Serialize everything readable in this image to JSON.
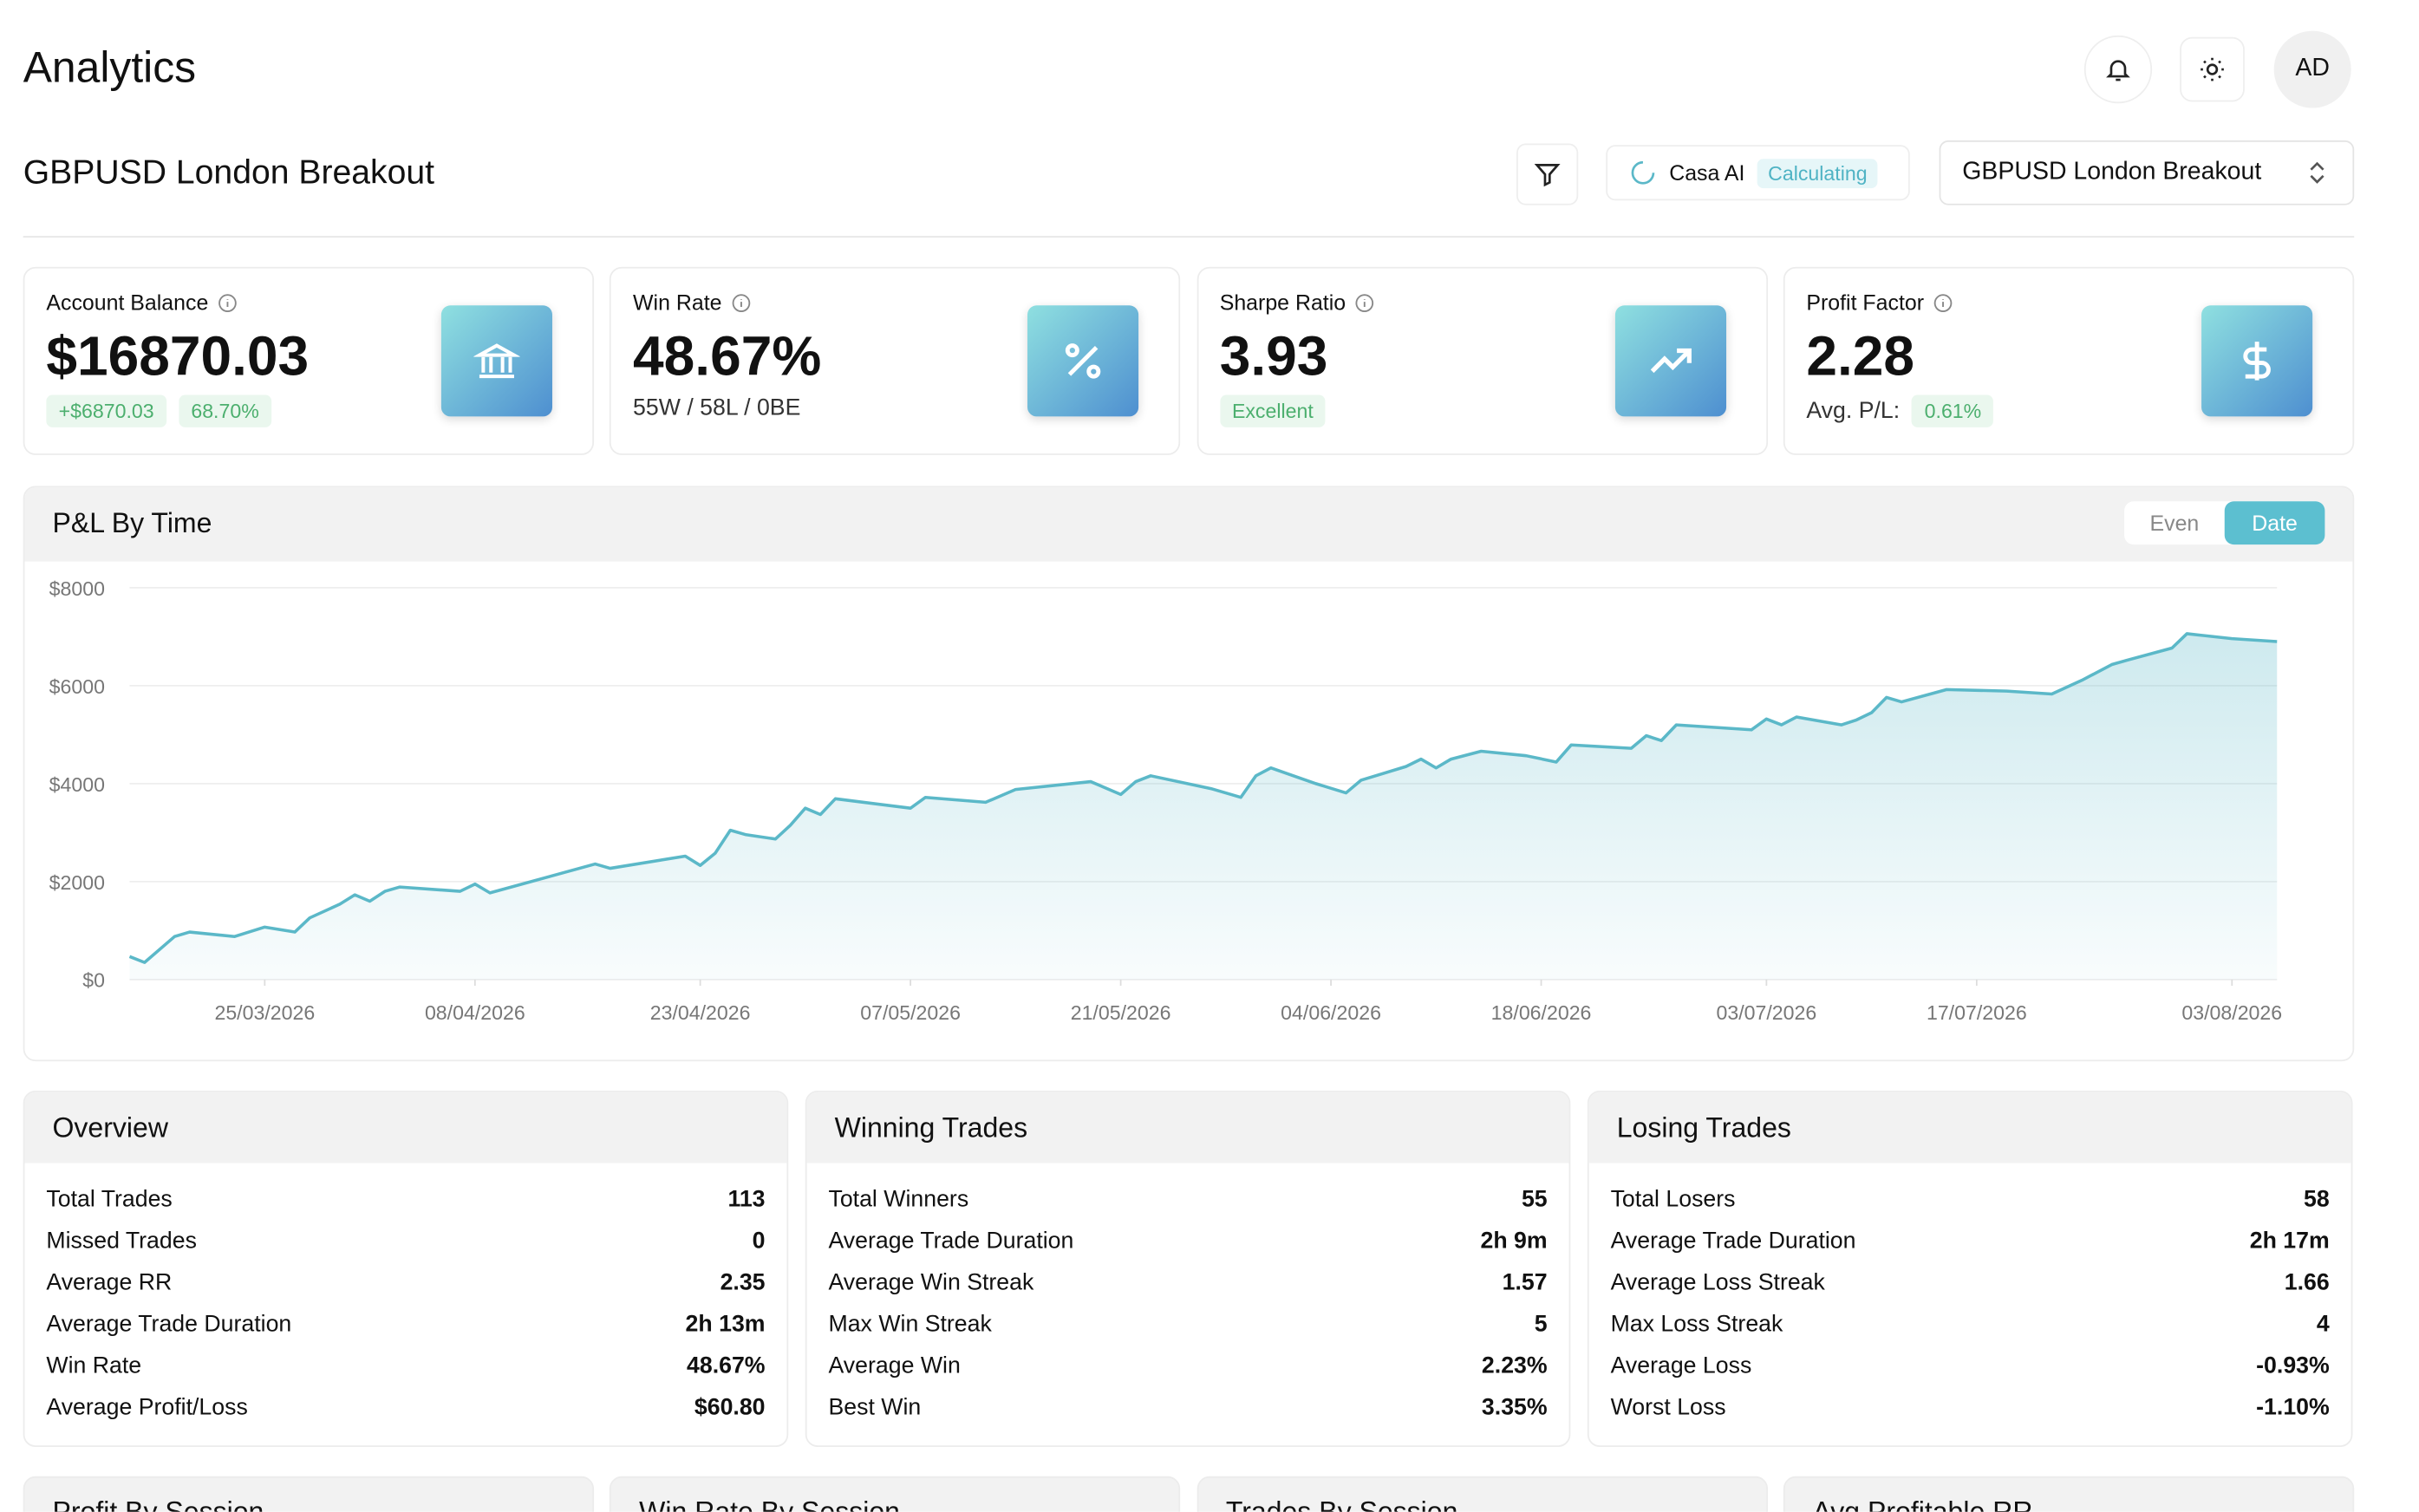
{
  "header": {
    "title": "Analytics",
    "avatar": "AD"
  },
  "strategy": {
    "title": "GBPUSD London Breakout",
    "ai_label": "Casa AI",
    "ai_status": "Calculating",
    "selector": "GBPUSD London Breakout"
  },
  "cards": [
    {
      "label": "Account Balance",
      "value": "$16870.03",
      "badges": [
        "+$6870.03",
        "68.70%"
      ]
    },
    {
      "label": "Win Rate",
      "value": "48.67%",
      "sub": "55W / 58L / 0BE"
    },
    {
      "label": "Sharpe Ratio",
      "value": "3.93",
      "badges": [
        "Excellent"
      ]
    },
    {
      "label": "Profit Factor",
      "value": "2.28",
      "sub": "Avg. P/L:",
      "badges": [
        "0.61%"
      ]
    }
  ],
  "chart_data": {
    "type": "line",
    "title": "P&L By Time",
    "toggle": [
      "Even",
      "Date"
    ],
    "color": "#5bb8c8",
    "x": [
      "16/03/2026",
      "17/03/2026",
      "19/03/2026",
      "20/03/2026",
      "23/03/2026",
      "25/03/2026",
      "27/03/2026",
      "28/03/2026",
      "30/03/2026",
      "31/03/2026",
      "01/04/2026",
      "02/04/2026",
      "03/04/2026",
      "07/04/2026",
      "08/04/2026",
      "09/04/2026",
      "16/04/2026",
      "17/04/2026",
      "22/04/2026",
      "23/04/2026",
      "24/04/2026",
      "25/04/2026",
      "26/04/2026",
      "28/04/2026",
      "29/04/2026",
      "30/04/2026",
      "01/05/2026",
      "02/05/2026",
      "07/05/2026",
      "08/05/2026",
      "12/05/2026",
      "14/05/2026",
      "19/05/2026",
      "21/05/2026",
      "22/05/2026",
      "23/05/2026",
      "27/05/2026",
      "29/05/2026",
      "30/05/2026",
      "31/05/2026",
      "03/06/2026",
      "05/06/2026",
      "06/06/2026",
      "09/06/2026",
      "10/06/2026",
      "11/06/2026",
      "12/06/2026",
      "14/06/2026",
      "17/06/2026",
      "19/06/2026",
      "20/06/2026",
      "24/06/2026",
      "25/06/2026",
      "26/06/2026",
      "27/06/2026",
      "02/07/2026",
      "03/07/2026",
      "04/07/2026",
      "05/07/2026",
      "08/07/2026",
      "09/07/2026",
      "10/07/2026",
      "11/07/2026",
      "12/07/2026",
      "15/07/2026",
      "19/07/2026",
      "22/07/2026",
      "24/07/2026",
      "26/07/2026",
      "27/07/2026",
      "30/07/2026",
      "31/07/2026",
      "03/08/2026",
      "06/08/2026"
    ],
    "values": [
      470,
      350,
      880,
      970,
      880,
      1070,
      970,
      1260,
      1540,
      1730,
      1600,
      1800,
      1890,
      1800,
      1950,
      1770,
      2360,
      2270,
      2520,
      2330,
      2580,
      3050,
      2960,
      2870,
      3150,
      3500,
      3370,
      3690,
      3500,
      3720,
      3620,
      3880,
      4040,
      3780,
      4040,
      4160,
      3900,
      3720,
      4160,
      4320,
      4000,
      3810,
      4070,
      4350,
      4500,
      4320,
      4500,
      4660,
      4570,
      4440,
      4790,
      4720,
      4980,
      4880,
      5200,
      5100,
      5320,
      5200,
      5360,
      5200,
      5300,
      5450,
      5760,
      5670,
      5920,
      5890,
      5830,
      6110,
      6430,
      6520,
      6770,
      7060,
      6960,
      6900
    ],
    "xlim": [
      "16/03/2026",
      "06/08/2026"
    ],
    "xticks": [
      "25/03/2026",
      "08/04/2026",
      "23/04/2026",
      "07/05/2026",
      "21/05/2026",
      "04/06/2026",
      "18/06/2026",
      "03/07/2026",
      "17/07/2026",
      "03/08/2026"
    ],
    "ylim": [
      0,
      8000
    ],
    "yticks": [
      {
        "value": 0,
        "label": "$0"
      },
      {
        "value": 2000,
        "label": "$2000"
      },
      {
        "value": 4000,
        "label": "$4000"
      },
      {
        "value": 6000,
        "label": "$6000"
      },
      {
        "value": 8000,
        "label": "$8000"
      }
    ],
    "grid": true
  },
  "stats": [
    {
      "title": "Overview",
      "rows": [
        [
          "Total Trades",
          "113"
        ],
        [
          "Missed Trades",
          "0"
        ],
        [
          "Average RR",
          "2.35"
        ],
        [
          "Average Trade Duration",
          "2h 13m"
        ],
        [
          "Win Rate",
          "48.67%"
        ],
        [
          "Average Profit/Loss",
          "$60.80"
        ]
      ]
    },
    {
      "title": "Winning Trades",
      "rows": [
        [
          "Total Winners",
          "55"
        ],
        [
          "Average Trade Duration",
          "2h 9m"
        ],
        [
          "Average Win Streak",
          "1.57"
        ],
        [
          "Max Win Streak",
          "5"
        ],
        [
          "Average Win",
          "2.23%"
        ],
        [
          "Best Win",
          "3.35%"
        ]
      ]
    },
    {
      "title": "Losing Trades",
      "rows": [
        [
          "Total Losers",
          "58"
        ],
        [
          "Average Trade Duration",
          "2h 17m"
        ],
        [
          "Average Loss Streak",
          "1.66"
        ],
        [
          "Max Loss Streak",
          "4"
        ],
        [
          "Average Loss",
          "-0.93%"
        ],
        [
          "Worst Loss",
          "-1.10%"
        ]
      ]
    }
  ],
  "bottom": [
    "Profit By Session",
    "Win Rate By Session",
    "Trades By Session",
    "Avg Profitable RR"
  ]
}
